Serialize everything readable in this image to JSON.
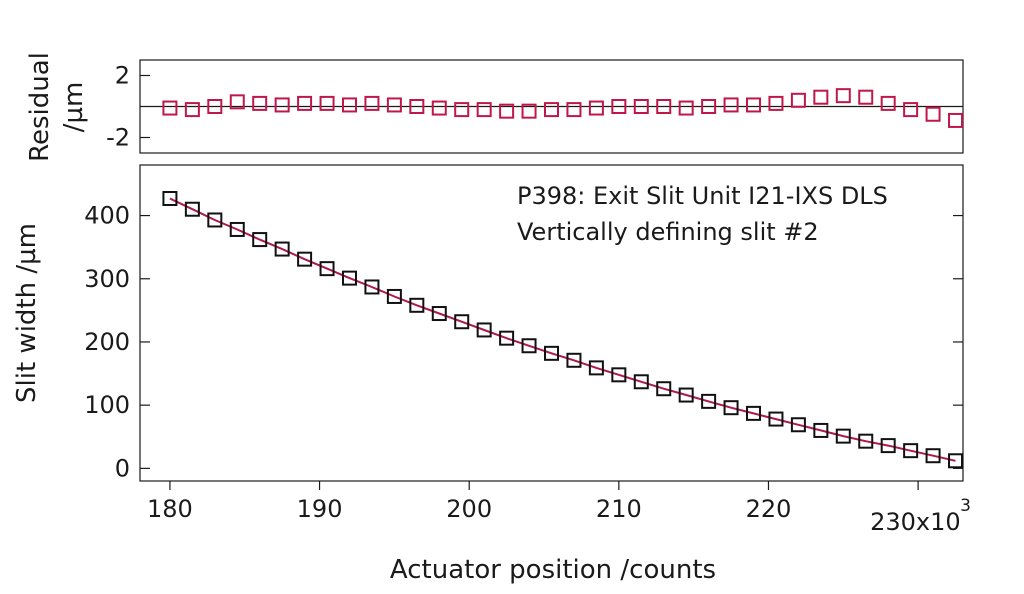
{
  "chart_data": [
    {
      "type": "scatter",
      "title": "",
      "ylabel_lines": [
        "Residual",
        "/µm"
      ],
      "xlim": [
        178000,
        233000
      ],
      "ylim": [
        -3,
        3
      ],
      "yticks": [
        {
          "value": 2,
          "label": "2"
        },
        {
          "value": -2,
          "label": "-2"
        }
      ],
      "zero_line": true,
      "marker_color": "#c0174a",
      "series": [
        {
          "x": [
            180000,
            181500,
            183000,
            184500,
            186000,
            187500,
            189000,
            190500,
            192000,
            193500,
            195000,
            196500,
            198000,
            199500,
            201000,
            202500,
            204000,
            205500,
            207000,
            208500,
            210000,
            211500,
            213000,
            214500,
            216000,
            217500,
            219000,
            220500,
            222000,
            223500,
            225000,
            226500,
            228000,
            229500,
            231000,
            232500
          ],
          "y": [
            -0.1,
            -0.2,
            0.0,
            0.3,
            0.2,
            0.1,
            0.2,
            0.2,
            0.1,
            0.2,
            0.1,
            0.0,
            -0.1,
            -0.2,
            -0.2,
            -0.3,
            -0.3,
            -0.2,
            -0.2,
            -0.1,
            0.0,
            0.0,
            0.0,
            -0.1,
            0.0,
            0.1,
            0.1,
            0.2,
            0.4,
            0.6,
            0.7,
            0.6,
            0.2,
            -0.2,
            -0.5,
            -0.9
          ]
        }
      ]
    },
    {
      "type": "scatter",
      "title": "",
      "xlabel": "Actuator position /counts",
      "ylabel": "Slit width /µm",
      "xlim": [
        178000,
        233000
      ],
      "ylim": [
        -20,
        480
      ],
      "xticks": [
        {
          "value": 180000,
          "label": "180"
        },
        {
          "value": 190000,
          "label": "190"
        },
        {
          "value": 200000,
          "label": "200"
        },
        {
          "value": 210000,
          "label": "210"
        },
        {
          "value": 220000,
          "label": "220"
        }
      ],
      "x_last_tick": {
        "value": 230000,
        "label": "230x10",
        "exponent": "3"
      },
      "yticks": [
        {
          "value": 0,
          "label": "0"
        },
        {
          "value": 100,
          "label": "100"
        },
        {
          "value": 200,
          "label": "200"
        },
        {
          "value": 300,
          "label": "300"
        },
        {
          "value": 400,
          "label": "400"
        }
      ],
      "annotation": [
        "P398: Exit Slit Unit I21-IXS DLS",
        "Vertically defining slit #2"
      ],
      "marker_color": "#111111",
      "fit_color": "#b0174a",
      "series": [
        {
          "x": [
            180000,
            181500,
            183000,
            184500,
            186000,
            187500,
            189000,
            190500,
            192000,
            193500,
            195000,
            196500,
            198000,
            199500,
            201000,
            202500,
            204000,
            205500,
            207000,
            208500,
            210000,
            211500,
            213000,
            214500,
            216000,
            217500,
            219000,
            220500,
            222000,
            223500,
            225000,
            226500,
            228000,
            229500,
            231000,
            232500
          ],
          "y": [
            427,
            410,
            393,
            378,
            362,
            347,
            331,
            316,
            301,
            287,
            272,
            258,
            245,
            232,
            219,
            206,
            194,
            182,
            171,
            159,
            148,
            137,
            126,
            116,
            106,
            96,
            87,
            78,
            69,
            60,
            51,
            43,
            36,
            28,
            20,
            12
          ]
        }
      ]
    }
  ]
}
